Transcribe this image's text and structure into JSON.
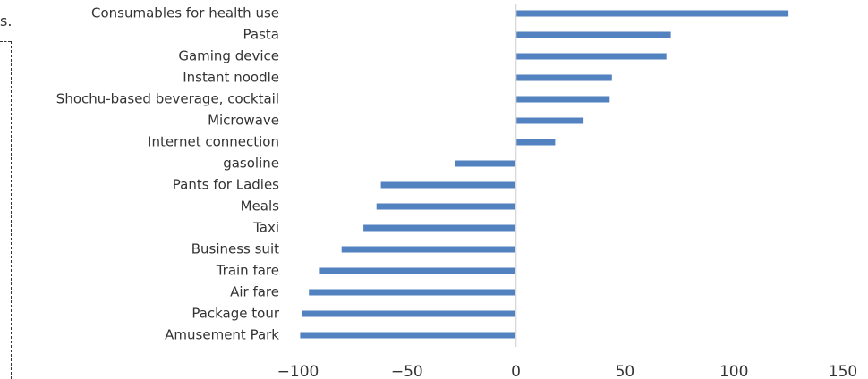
{
  "fragment_text": "s.",
  "chart_data": {
    "type": "bar",
    "orientation": "horizontal",
    "title": "",
    "xlabel": "",
    "ylabel": "",
    "xlim": [
      -100,
      150
    ],
    "xticks": [
      -100,
      -50,
      0,
      50,
      100,
      150
    ],
    "xtick_labels": [
      "−100",
      "−50",
      "0",
      "50",
      "100",
      "150"
    ],
    "grid": false,
    "bar_color": "#5282bf",
    "axis_color": "#d9d9d9",
    "categories": [
      "Consumables for health use",
      "Pasta",
      "Gaming device",
      "Instant noodle",
      "Shochu-based beverage, cocktail",
      "Microwave",
      "Internet connection",
      "gasoline",
      "Pants for Ladies",
      "Meals",
      "Taxi",
      "Business suit",
      "Train fare",
      "Air fare",
      "Package tour",
      "Amusement Park"
    ],
    "values": [
      125,
      71,
      69,
      44,
      43,
      31,
      18,
      -28,
      -62,
      -64,
      -70,
      -80,
      -90,
      -95,
      -98,
      -99
    ]
  }
}
